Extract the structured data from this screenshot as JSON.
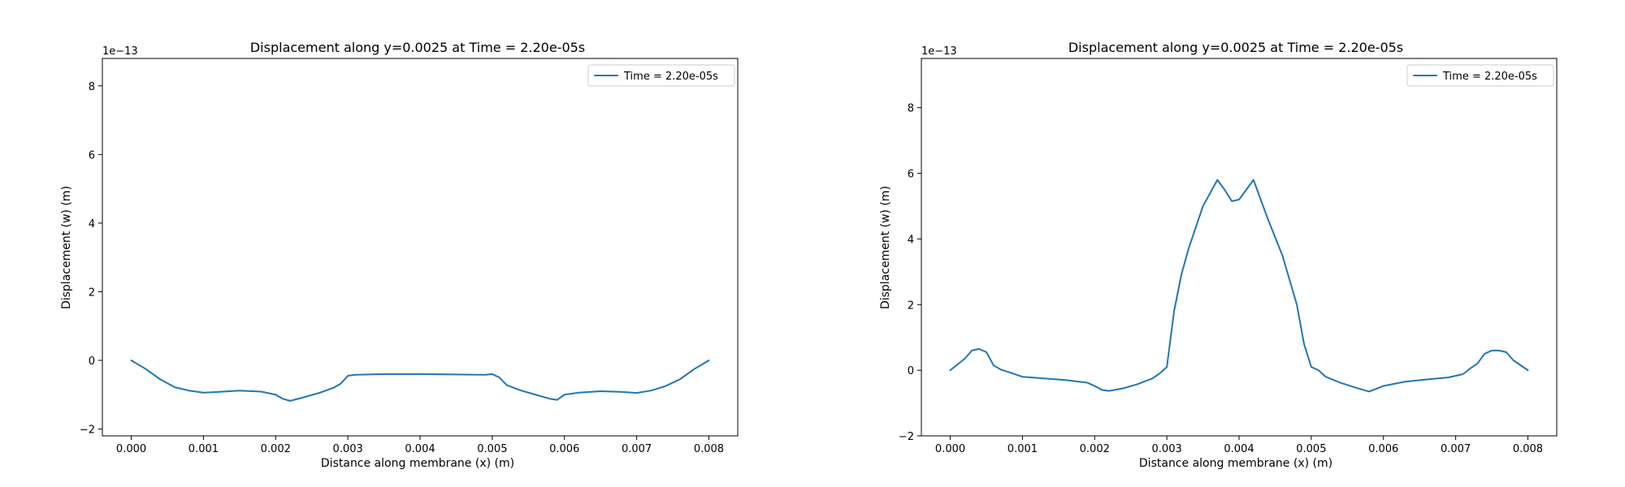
{
  "colors": {
    "series": "#1f77b4"
  },
  "chart_data": [
    {
      "type": "line",
      "title": "Displacement along y=0.0025 at Time = 2.20e-05s",
      "xlabel": "Distance along membrane (x) (m)",
      "ylabel": "Displacement (w) (m)",
      "y_multiplier_label": "1e−13",
      "xlim": [
        -0.0004,
        0.0084
      ],
      "ylim": [
        -2.2,
        8.8
      ],
      "xticks": [
        0.0,
        0.001,
        0.002,
        0.003,
        0.004,
        0.005,
        0.006,
        0.007,
        0.008
      ],
      "xtick_labels": [
        "0.000",
        "0.001",
        "0.002",
        "0.003",
        "0.004",
        "0.005",
        "0.006",
        "0.007",
        "0.008"
      ],
      "yticks": [
        -2,
        0,
        2,
        4,
        6,
        8
      ],
      "ytick_labels": [
        "−2",
        "0",
        "2",
        "4",
        "6",
        "8"
      ],
      "grid": false,
      "legend_placement": "upper-right",
      "series": [
        {
          "name": "Time = 2.20e-05s",
          "x": [
            0.0,
            0.0002,
            0.0004,
            0.0006,
            0.0008,
            0.001,
            0.0012,
            0.0015,
            0.0018,
            0.002,
            0.0021,
            0.0022,
            0.0024,
            0.0026,
            0.0028,
            0.0029,
            0.003,
            0.0031,
            0.0035,
            0.004,
            0.0045,
            0.0049,
            0.005,
            0.0051,
            0.0052,
            0.0054,
            0.0056,
            0.0058,
            0.0059,
            0.006,
            0.0062,
            0.0065,
            0.0068,
            0.007,
            0.0072,
            0.0074,
            0.0076,
            0.0078,
            0.008
          ],
          "y": [
            0.0,
            -0.25,
            -0.55,
            -0.78,
            -0.88,
            -0.94,
            -0.92,
            -0.88,
            -0.91,
            -1.0,
            -1.12,
            -1.18,
            -1.07,
            -0.95,
            -0.8,
            -0.68,
            -0.45,
            -0.42,
            -0.4,
            -0.4,
            -0.41,
            -0.42,
            -0.4,
            -0.5,
            -0.72,
            -0.88,
            -1.0,
            -1.12,
            -1.15,
            -1.0,
            -0.94,
            -0.9,
            -0.92,
            -0.95,
            -0.88,
            -0.75,
            -0.55,
            -0.25,
            0.0
          ]
        }
      ]
    },
    {
      "type": "line",
      "title": "Displacement along y=0.0025 at Time = 2.20e-05s",
      "xlabel": "Distance along membrane (x) (m)",
      "ylabel": "Displacement (w) (m)",
      "y_multiplier_label": "1e−13",
      "xlim": [
        -0.0004,
        0.0084
      ],
      "ylim": [
        -2.0,
        9.5
      ],
      "xticks": [
        0.0,
        0.001,
        0.002,
        0.003,
        0.004,
        0.005,
        0.006,
        0.007,
        0.008
      ],
      "xtick_labels": [
        "0.000",
        "0.001",
        "0.002",
        "0.003",
        "0.004",
        "0.005",
        "0.006",
        "0.007",
        "0.008"
      ],
      "yticks": [
        -2,
        0,
        2,
        4,
        6,
        8
      ],
      "ytick_labels": [
        "−2",
        "0",
        "2",
        "4",
        "6",
        "8"
      ],
      "grid": false,
      "legend_placement": "upper-right",
      "series": [
        {
          "name": "Time = 2.20e-05s",
          "x": [
            0.0,
            0.0002,
            0.0003,
            0.0004,
            0.0005,
            0.0006,
            0.0007,
            0.0008,
            0.001,
            0.0013,
            0.0016,
            0.0019,
            0.002,
            0.0021,
            0.0022,
            0.0024,
            0.0026,
            0.0028,
            0.0029,
            0.003,
            0.0031,
            0.0032,
            0.0033,
            0.0035,
            0.0037,
            0.0038,
            0.0039,
            0.004,
            0.0041,
            0.0042,
            0.0044,
            0.0046,
            0.0048,
            0.0049,
            0.005,
            0.0051,
            0.0052,
            0.0054,
            0.0056,
            0.0058,
            0.006,
            0.0063,
            0.0066,
            0.0069,
            0.0071,
            0.0072,
            0.0073,
            0.0074,
            0.0075,
            0.0076,
            0.0077,
            0.0078,
            0.008
          ],
          "y": [
            0.0,
            0.35,
            0.6,
            0.65,
            0.55,
            0.15,
            0.02,
            -0.05,
            -0.2,
            -0.25,
            -0.3,
            -0.38,
            -0.48,
            -0.6,
            -0.63,
            -0.55,
            -0.42,
            -0.25,
            -0.1,
            0.1,
            1.8,
            2.9,
            3.7,
            5.0,
            5.8,
            5.5,
            5.15,
            5.2,
            5.5,
            5.8,
            4.6,
            3.5,
            2.0,
            0.8,
            0.1,
            0.0,
            -0.2,
            -0.38,
            -0.52,
            -0.65,
            -0.48,
            -0.35,
            -0.28,
            -0.22,
            -0.12,
            0.05,
            0.2,
            0.5,
            0.6,
            0.6,
            0.55,
            0.3,
            0.0
          ]
        }
      ]
    }
  ]
}
